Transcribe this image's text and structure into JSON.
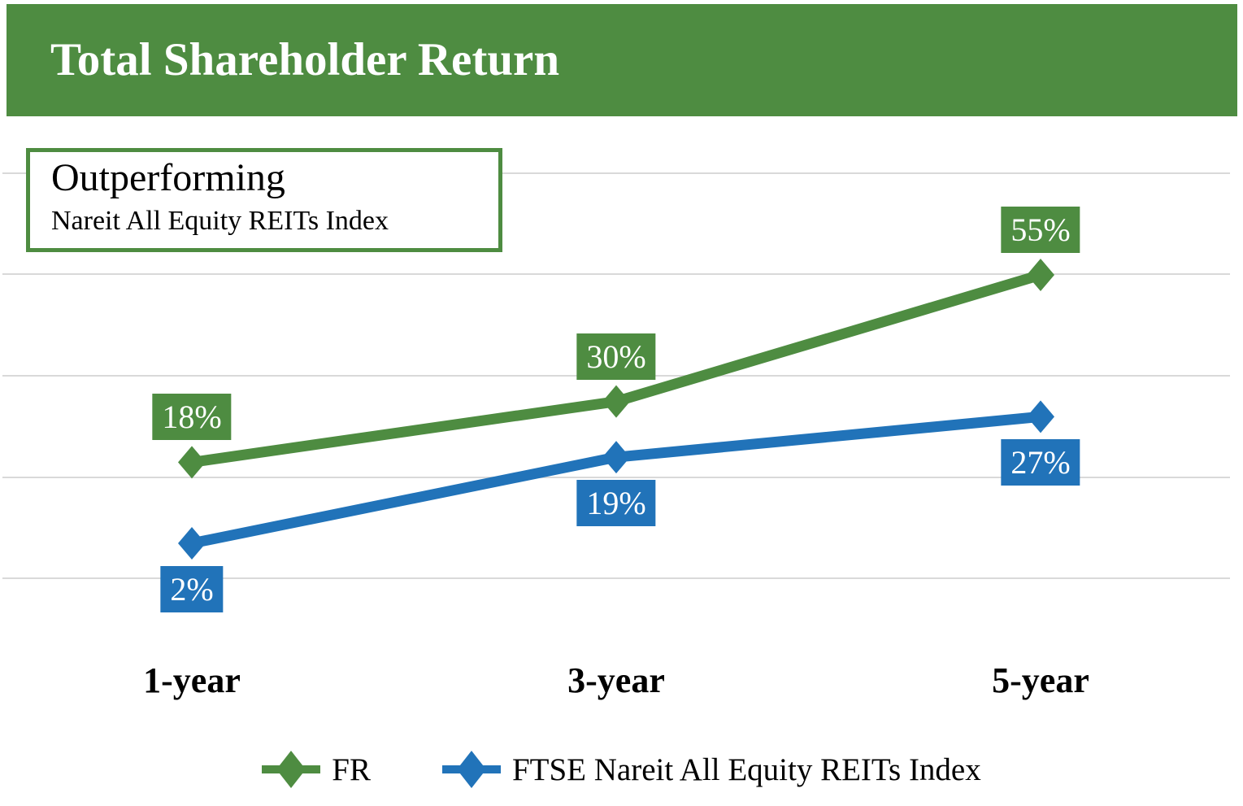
{
  "header": {
    "title": "Total Shareholder Return",
    "bg_color": "#4e8c41",
    "text_color": "#ffffff"
  },
  "callout": {
    "line1": "Outperforming",
    "line2": "Nareit All Equity REITs Index",
    "border_color": "#4e8c41"
  },
  "chart_data": {
    "type": "line",
    "title": "Total Shareholder Return",
    "categories": [
      "1-year",
      "3-year",
      "5-year"
    ],
    "series": [
      {
        "name": "FR",
        "color": "#4e8c41",
        "values": [
          18,
          30,
          55
        ],
        "labels": [
          "18%",
          "30%",
          "55%"
        ],
        "label_position": "above",
        "marker": "diamond"
      },
      {
        "name": "FTSE Nareit All Equity REITs Index",
        "color": "#2173b9",
        "values": [
          2,
          19,
          27
        ],
        "labels": [
          "2%",
          "19%",
          "27%"
        ],
        "label_position": "below",
        "marker": "diamond"
      }
    ],
    "xlabel": "",
    "ylabel": "",
    "ylim": [
      -5,
      75
    ],
    "gridlines": {
      "visible": true,
      "count": 5,
      "interval_pct": 20,
      "color": "#d9d9d9"
    },
    "y_axis_labels_visible": false,
    "legend_position": "bottom",
    "annotation": {
      "line1": "Outperforming",
      "line2": "Nareit All Equity REITs Index"
    }
  }
}
